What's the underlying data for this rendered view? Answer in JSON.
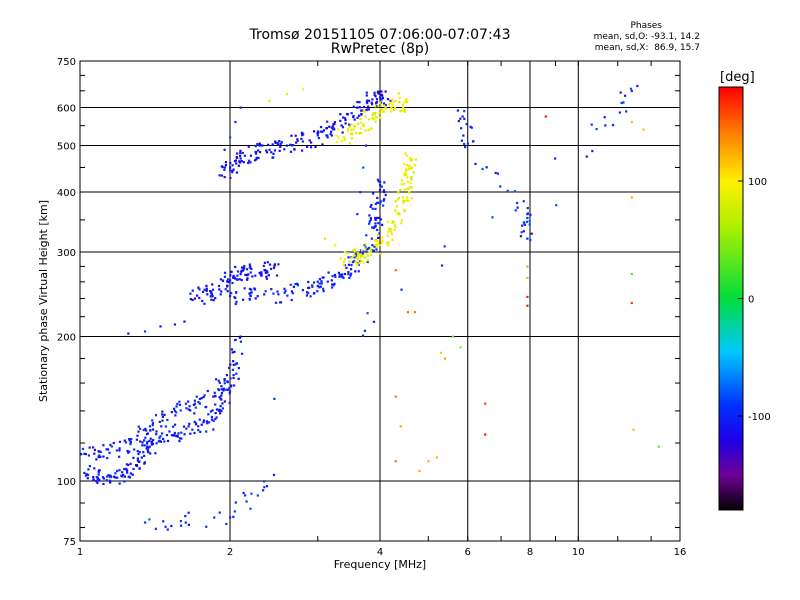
{
  "chart_data": {
    "type": "scatter",
    "title": "Tromsø 20151105 07:06:00-07:07:43",
    "subtitle": "RwPretec (8p)",
    "xlabel": "Frequency [MHz]",
    "ylabel": "Stationary phase Virtual Height [km]",
    "x_scale": "log",
    "y_scale": "log",
    "xlim": [
      1,
      16
    ],
    "ylim": [
      75,
      750
    ],
    "x_ticks": [
      "1",
      "2",
      "4",
      "6",
      "8",
      "10",
      "16"
    ],
    "y_ticks": [
      "75",
      "100",
      "200",
      "300",
      "400",
      "500",
      "600",
      "750"
    ],
    "grid": true,
    "phase_stats": {
      "heading": "Phases",
      "line_o": "mean, sd,O: -93.1, 14.2",
      "line_x": "mean, sd,X:  86.9, 15.7"
    },
    "colorbar": {
      "unit": "[deg]",
      "range": [
        -180,
        180
      ],
      "ticks": [
        "100",
        "0",
        "-100"
      ],
      "tick_values": [
        100,
        0,
        -100
      ]
    },
    "traces": [
      {
        "phase": -105,
        "points": [
          [
            1.02,
            104
          ],
          [
            1.08,
            102
          ],
          [
            1.15,
            102
          ],
          [
            1.22,
            103
          ],
          [
            1.28,
            106
          ],
          [
            1.33,
            112
          ],
          [
            1.38,
            118
          ],
          [
            1.45,
            124
          ],
          [
            1.55,
            126
          ],
          [
            1.68,
            128
          ],
          [
            1.8,
            132
          ],
          [
            1.9,
            140
          ],
          [
            1.98,
            155
          ],
          [
            2.05,
            175
          ],
          [
            2.1,
            200
          ]
        ]
      },
      {
        "phase": -100,
        "points": [
          [
            1.02,
            114
          ],
          [
            1.1,
            115
          ],
          [
            1.2,
            117
          ],
          [
            1.3,
            122
          ],
          [
            1.4,
            132
          ],
          [
            1.55,
            140
          ],
          [
            1.7,
            145
          ],
          [
            1.85,
            150
          ],
          [
            1.95,
            162
          ]
        ]
      },
      {
        "phase": -100,
        "points": [
          [
            1.25,
            203
          ],
          [
            1.35,
            205
          ],
          [
            1.45,
            210
          ],
          [
            1.55,
            212
          ],
          [
            1.62,
            215
          ]
        ]
      },
      {
        "phase": -110,
        "points": [
          [
            1.7,
            240
          ],
          [
            1.8,
            245
          ],
          [
            1.9,
            255
          ],
          [
            2.0,
            262
          ],
          [
            2.1,
            270
          ],
          [
            2.2,
            272
          ],
          [
            2.35,
            275
          ],
          [
            2.45,
            278
          ]
        ]
      },
      {
        "phase": -100,
        "points": [
          [
            2.0,
            243
          ],
          [
            2.2,
            243
          ],
          [
            2.5,
            245
          ],
          [
            2.8,
            250
          ],
          [
            3.0,
            255
          ],
          [
            3.2,
            262
          ],
          [
            3.4,
            270
          ],
          [
            3.6,
            285
          ],
          [
            3.75,
            300
          ],
          [
            3.85,
            320
          ],
          [
            3.92,
            350
          ],
          [
            3.96,
            380
          ],
          [
            4.0,
            420
          ]
        ]
      },
      {
        "phase": -110,
        "points": [
          [
            1.95,
            430
          ],
          [
            2.0,
            450
          ],
          [
            2.1,
            470
          ],
          [
            2.25,
            485
          ],
          [
            2.4,
            490
          ],
          [
            2.6,
            500
          ],
          [
            2.8,
            510
          ],
          [
            3.0,
            525
          ],
          [
            3.2,
            545
          ],
          [
            3.4,
            570
          ],
          [
            3.6,
            600
          ],
          [
            3.8,
            620
          ],
          [
            4.0,
            630
          ],
          [
            4.15,
            625
          ]
        ]
      },
      {
        "phase": -95,
        "points": [
          [
            1.95,
            490
          ],
          [
            2.0,
            520
          ],
          [
            2.05,
            560
          ],
          [
            2.1,
            600
          ]
        ]
      },
      {
        "phase": -95,
        "points": [
          [
            3.6,
            360
          ],
          [
            3.65,
            400
          ],
          [
            3.7,
            450
          ],
          [
            3.75,
            500
          ]
        ]
      },
      {
        "phase": 90,
        "points": [
          [
            3.4,
            290
          ],
          [
            3.6,
            292
          ],
          [
            3.8,
            300
          ],
          [
            4.0,
            310
          ],
          [
            4.2,
            335
          ],
          [
            4.35,
            360
          ],
          [
            4.45,
            390
          ],
          [
            4.55,
            420
          ],
          [
            4.6,
            450
          ],
          [
            4.6,
            470
          ]
        ]
      },
      {
        "phase": 95,
        "points": [
          [
            3.1,
            320
          ],
          [
            3.25,
            310
          ],
          [
            3.4,
            300
          ],
          [
            3.55,
            295
          ],
          [
            3.7,
            295
          ]
        ]
      },
      {
        "phase": 90,
        "points": [
          [
            3.3,
            520
          ],
          [
            3.5,
            530
          ],
          [
            3.7,
            550
          ],
          [
            3.9,
            580
          ],
          [
            4.1,
            600
          ],
          [
            4.3,
            620
          ],
          [
            4.45,
            600
          ]
        ]
      },
      {
        "phase": 95,
        "points": [
          [
            2.4,
            620
          ],
          [
            2.6,
            640
          ],
          [
            2.8,
            655
          ]
        ]
      },
      {
        "phase": 140,
        "points": [
          [
            4.3,
            275
          ],
          [
            4.55,
            225
          ],
          [
            4.7,
            225
          ],
          [
            4.3,
            150
          ],
          [
            4.4,
            130
          ],
          [
            4.3,
            110
          ]
        ]
      },
      {
        "phase": 120,
        "points": [
          [
            5.2,
            112
          ],
          [
            5.0,
            110
          ],
          [
            4.8,
            105
          ],
          [
            5.3,
            185
          ],
          [
            5.4,
            180
          ]
        ]
      },
      {
        "phase": 170,
        "points": [
          [
            7.9,
            242
          ],
          [
            7.9,
            232
          ],
          [
            8.6,
            575
          ],
          [
            6.5,
            145
          ],
          [
            6.5,
            125
          ],
          [
            12.8,
            235
          ]
        ]
      },
      {
        "phase": 40,
        "points": [
          [
            7.9,
            280
          ],
          [
            7.9,
            265
          ],
          [
            12.8,
            270
          ],
          [
            14.5,
            118
          ],
          [
            5.6,
            200
          ],
          [
            5.8,
            190
          ]
        ]
      },
      {
        "phase": 110,
        "points": [
          [
            12.8,
            560
          ],
          [
            13.5,
            540
          ],
          [
            12.8,
            390
          ],
          [
            12.9,
            128
          ]
        ]
      },
      {
        "phase": -95,
        "points": [
          [
            5.9,
            590
          ],
          [
            6.0,
            505
          ],
          [
            7.9,
            360
          ],
          [
            7.9,
            320
          ],
          [
            12.8,
            650
          ],
          [
            1.35,
            82
          ],
          [
            2.0,
            84
          ],
          [
            2.45,
            103
          ]
        ]
      }
    ]
  }
}
